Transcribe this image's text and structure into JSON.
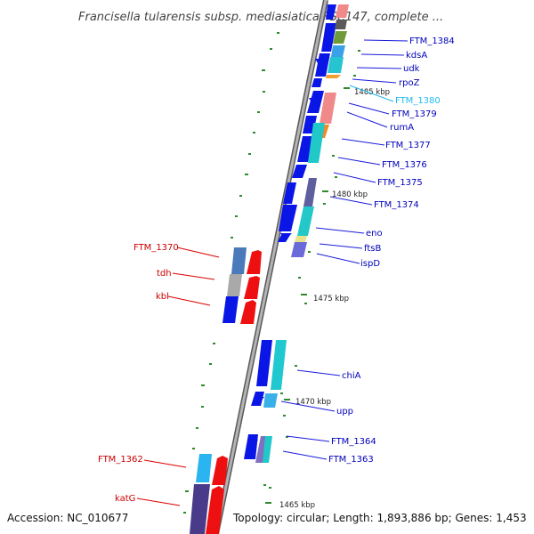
{
  "title": "Francisella tularensis subsp. mediasiatica FSC147, complete ...",
  "footer": {
    "accession": "Accession: NC_010677",
    "summary": "Topology: circular; Length: 1,893,886 bp; Genes: 1,453"
  },
  "scale": [
    {
      "text": "1485 kbp"
    },
    {
      "text": "1480 kbp"
    },
    {
      "text": "1475 kbp"
    },
    {
      "text": "1470 kbp"
    },
    {
      "text": "1465 kbp"
    }
  ],
  "forward_labels": [
    {
      "text": "FTM_1370"
    },
    {
      "text": "tdh"
    },
    {
      "text": "kbl"
    },
    {
      "text": "FTM_1362"
    },
    {
      "text": "katG"
    }
  ],
  "reverse_labels": [
    {
      "text": "FTM_1384"
    },
    {
      "text": "kdsA"
    },
    {
      "text": "udk"
    },
    {
      "text": "rpoZ"
    },
    {
      "text": "FTM_1380"
    },
    {
      "text": "FTM_1379"
    },
    {
      "text": "rumA"
    },
    {
      "text": "FTM_1377"
    },
    {
      "text": "FTM_1376"
    },
    {
      "text": "FTM_1375"
    },
    {
      "text": "FTM_1374"
    },
    {
      "text": "eno"
    },
    {
      "text": "ftsB"
    },
    {
      "text": "ispD"
    },
    {
      "text": "chiA"
    },
    {
      "text": "upp"
    },
    {
      "text": "FTM_1364"
    },
    {
      "text": "FTM_1363"
    }
  ],
  "colors": {
    "forward_label": "#cc0000",
    "reverse_label": "#0000bb",
    "highlight_label": "#22bbee",
    "backbone": "#9a9a9a",
    "tick": "#2d8a2d"
  }
}
